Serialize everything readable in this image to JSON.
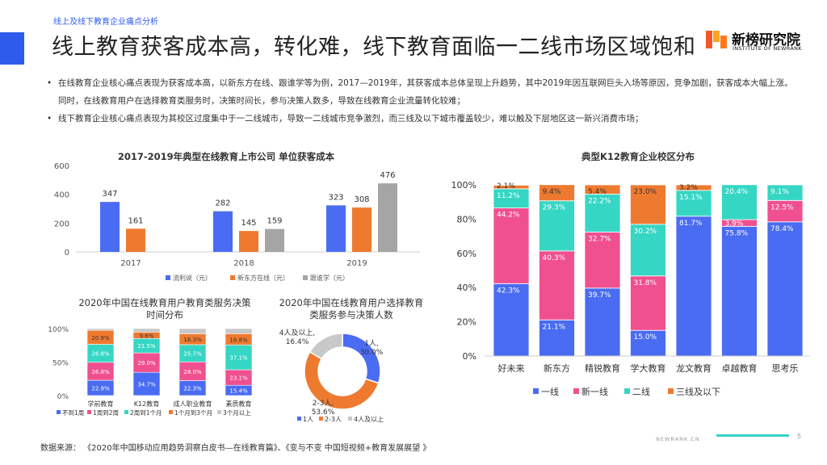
{
  "header": {
    "kicker": "线上及线下教育企业痛点分析",
    "title": "线上教育获客成本高，转化难，线下教育面临一二线市场区域饱和",
    "logo_text": "新榜研究院",
    "logo_sub": "INSTITUTE OF NEWRANK"
  },
  "bullets": [
    "在线教育企业核心痛点表现为获客成本高，以新东方在线、跟谁学等为例，2017—2019年，其获客成本总体呈现上升趋势，其中2019年因互联网巨头入场等原因，竞争加剧，获客成本大幅上涨。同时，在线教育用户在选择教育类服务时，决策时间长，参与决策人数多，导致在线教育企业流量转化较难；",
    "线下教育企业核心痛点表现为其校区过度集中于一二线城市，导致一二线城市竞争激烈，而三线及以下城市覆盖较少，难以触及下层地区这一新兴消费市场；"
  ],
  "footer": {
    "source": "数据来源：  《2020年中国移动应用趋势洞察白皮书—在线教育篇》、《变与不变 中国短视频+教育发展展望 》",
    "site": "NEWRANK.CN",
    "page": "5"
  },
  "colors": {
    "blue": "#4a6cf2",
    "orange": "#ee7a30",
    "gray": "#a5a5a5",
    "pink": "#f0508f",
    "teal": "#36d6c4",
    "lightgray": "#c8c8c8",
    "accent": "#2f5bea"
  },
  "chart_data": [
    {
      "type": "bar",
      "title": "2017-2019年典型在线教育上市公司 单位获客成本",
      "categories": [
        "2017",
        "2018",
        "2019"
      ],
      "series": [
        {
          "name": "流利说（元）",
          "values": [
            347,
            282,
            323
          ]
        },
        {
          "name": "新东方在线（元）",
          "values": [
            161,
            145,
            308
          ]
        },
        {
          "name": "跟谁学（元）",
          "values": [
            null,
            159,
            476
          ]
        }
      ],
      "ylim": [
        0,
        600
      ],
      "yticks": [
        "0",
        "200",
        "400",
        "600"
      ],
      "legend": "bottom"
    },
    {
      "type": "bar",
      "stacked": true,
      "title": "典型K12教育企业校区分布",
      "categories": [
        "好未来",
        "新东方",
        "精锐教育",
        "学大教育",
        "龙文教育",
        "卓越教育",
        "思考乐"
      ],
      "series": [
        {
          "name": "一线",
          "values": [
            42.3,
            21.1,
            39.7,
            15.0,
            81.7,
            75.8,
            78.4
          ]
        },
        {
          "name": "新一线",
          "values": [
            44.2,
            40.3,
            32.7,
            31.8,
            0,
            3.9,
            12.5
          ]
        },
        {
          "name": "二线",
          "values": [
            11.2,
            29.3,
            22.2,
            30.2,
            15.1,
            20.4,
            9.1
          ]
        },
        {
          "name": "三线及以下",
          "values": [
            2.1,
            9.4,
            5.4,
            23.0,
            3.2,
            0,
            0
          ]
        }
      ],
      "ylim": [
        0,
        100
      ],
      "yticks": [
        "0%",
        "20%",
        "40%",
        "60%",
        "80%",
        "100%"
      ],
      "legend": "bottom"
    },
    {
      "type": "bar",
      "stacked": true,
      "title": "2020年中国在线教育用户教育类服务决策时间分布",
      "categories": [
        "学前教育",
        "K12教育",
        "成人职业教育",
        "素质教育"
      ],
      "series": [
        {
          "name": "不到1周",
          "values": [
            22.9,
            34.7,
            22.3,
            15.4
          ]
        },
        {
          "name": "1周到2周",
          "values": [
            26.8,
            29.0,
            28.0,
            23.1
          ]
        },
        {
          "name": "2周到1个月",
          "values": [
            26.8,
            21.5,
            25.7,
            37.1
          ]
        },
        {
          "name": "1个月到3个月",
          "values": [
            20.9,
            9.6,
            16.3,
            16.8
          ]
        },
        {
          "name": "3个月以上",
          "values": [
            2.6,
            5.2,
            7.7,
            7.6
          ]
        }
      ],
      "ylim": [
        0,
        100
      ],
      "yticks": [
        "0%",
        "50%",
        "100%"
      ],
      "legend": "bottom"
    },
    {
      "type": "pie",
      "donut": true,
      "title": "2020年中国在线教育用户选择教育类服务参与决策人数",
      "labels": [
        "1人",
        "2-3人",
        "4人及以上"
      ],
      "values": [
        30.0,
        53.6,
        16.4
      ],
      "slice_labels": [
        "1人,\n30.0%",
        "2-3人,\n53.6%",
        "4人及以上,\n16.4%"
      ],
      "legend": "bottom"
    }
  ]
}
